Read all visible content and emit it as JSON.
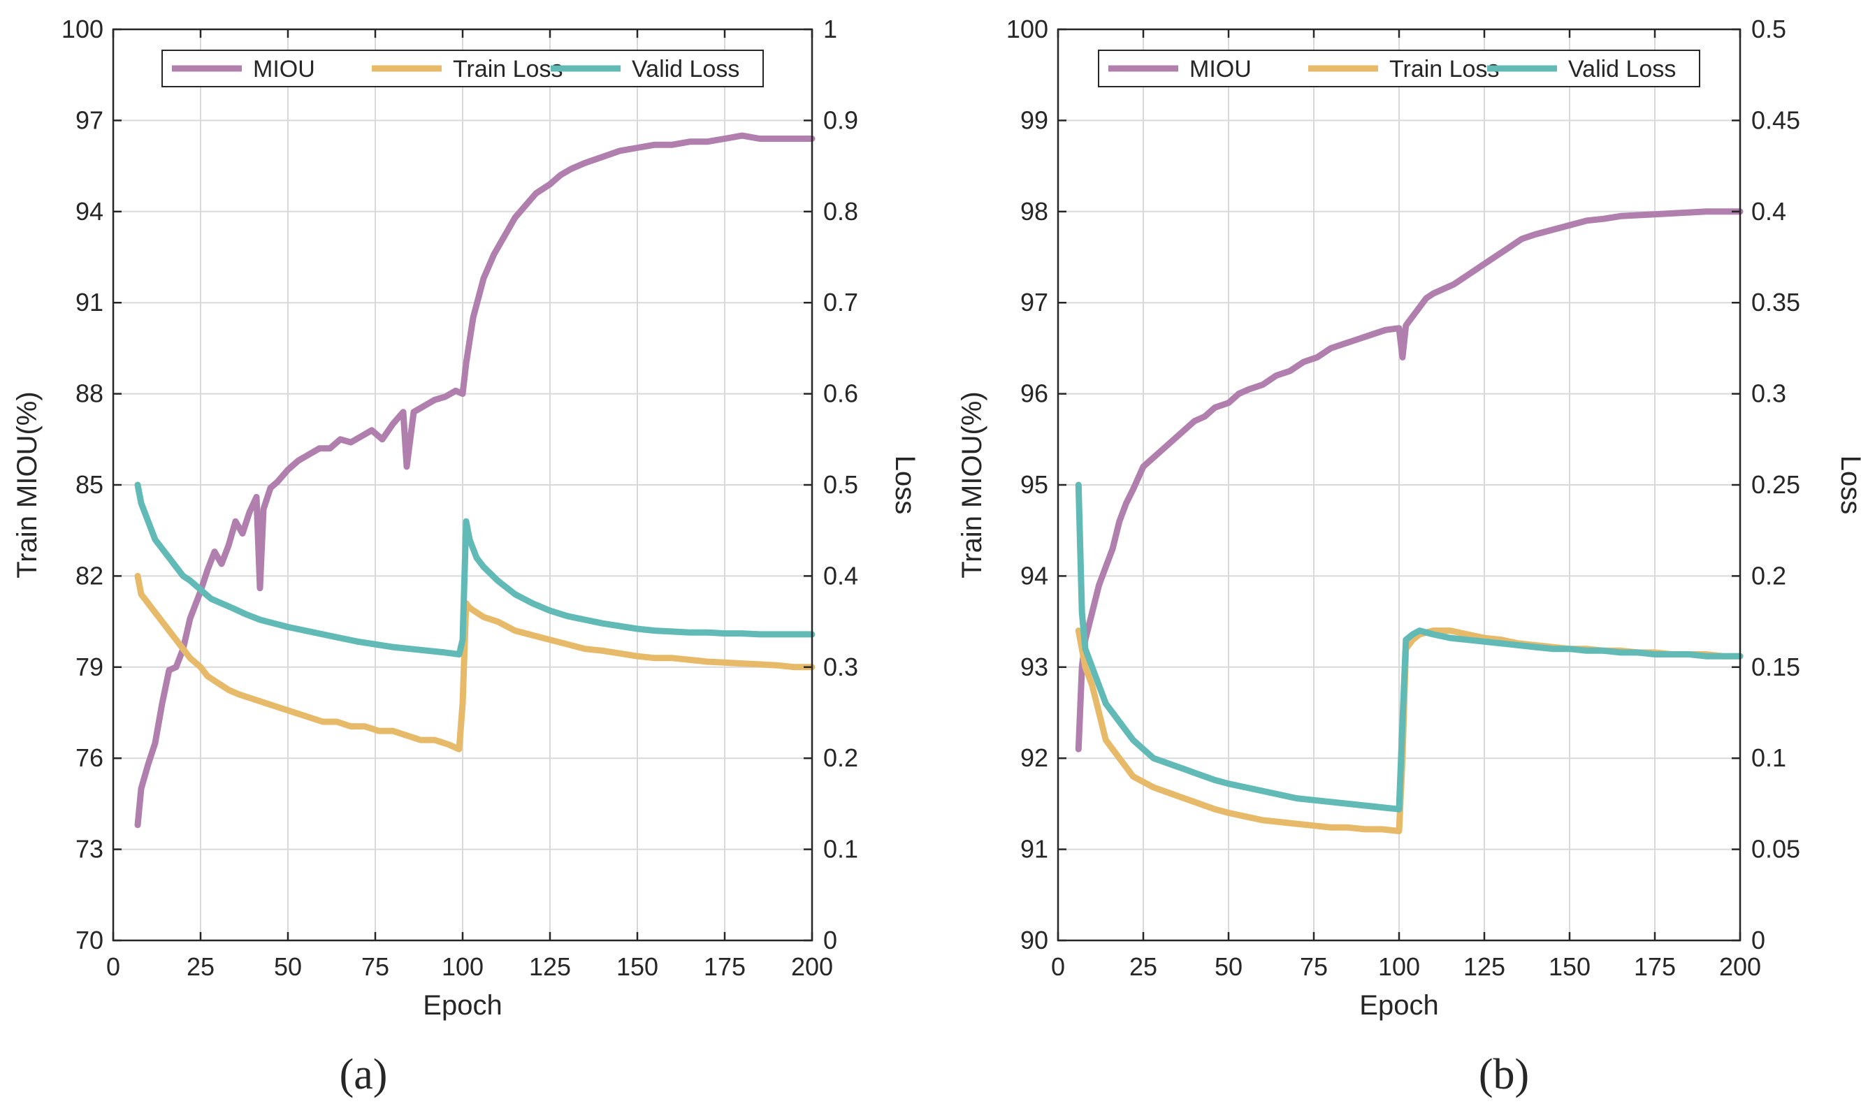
{
  "figure": {
    "colors": {
      "miou": "#b07fae",
      "train": "#e7ba6a",
      "valid": "#62bab7",
      "axis": "#262626",
      "grid": "#d9d9d9"
    }
  },
  "chart_data": [
    {
      "type": "line",
      "panel_label": "(a)",
      "xlabel": "Epoch",
      "ylabel_left": "Train MIOU(%)",
      "ylabel_right": "Loss",
      "xlim": [
        0,
        200
      ],
      "ylim_left": [
        70,
        100
      ],
      "ylim_right": [
        0,
        1
      ],
      "xticks": [
        "0",
        "25",
        "50",
        "75",
        "100",
        "125",
        "150",
        "175",
        "200"
      ],
      "yticks_left": [
        "70",
        "73",
        "76",
        "79",
        "82",
        "85",
        "88",
        "91",
        "94",
        "97",
        "100"
      ],
      "yticks_right": [
        "0",
        "0.1",
        "0.2",
        "0.3",
        "0.4",
        "0.5",
        "0.6",
        "0.7",
        "0.8",
        "0.9",
        "1"
      ],
      "grid": true,
      "legend": {
        "placement": "top",
        "entries": [
          "MIOU",
          "Train Loss",
          "Valid Loss"
        ]
      },
      "series": [
        {
          "name": "MIOU",
          "axis": "left",
          "color": "#b07fae",
          "x": [
            7,
            8,
            10,
            12,
            14,
            16,
            18,
            20,
            22,
            25,
            27,
            29,
            31,
            33,
            35,
            37,
            39,
            41,
            42,
            43,
            45,
            47,
            50,
            53,
            56,
            59,
            62,
            65,
            68,
            71,
            74,
            77,
            80,
            83,
            84,
            86,
            89,
            92,
            95,
            98,
            100,
            101,
            103,
            106,
            109,
            112,
            115,
            118,
            121,
            125,
            128,
            131,
            135,
            140,
            145,
            150,
            155,
            160,
            165,
            170,
            175,
            180,
            185,
            190,
            195,
            200
          ],
          "y": [
            73.8,
            75.0,
            75.8,
            76.5,
            77.8,
            78.9,
            79.0,
            79.6,
            80.6,
            81.5,
            82.2,
            82.8,
            82.4,
            83.0,
            83.8,
            83.4,
            84.1,
            84.6,
            81.6,
            84.2,
            84.9,
            85.1,
            85.5,
            85.8,
            86.0,
            86.2,
            86.2,
            86.5,
            86.4,
            86.6,
            86.8,
            86.5,
            87.0,
            87.4,
            85.6,
            87.4,
            87.6,
            87.8,
            87.9,
            88.1,
            88.0,
            89.0,
            90.5,
            91.8,
            92.6,
            93.2,
            93.8,
            94.2,
            94.6,
            94.9,
            95.2,
            95.4,
            95.6,
            95.8,
            96.0,
            96.1,
            96.2,
            96.2,
            96.3,
            96.3,
            96.4,
            96.5,
            96.4,
            96.4,
            96.4,
            96.4
          ]
        },
        {
          "name": "Train Loss",
          "axis": "right",
          "color": "#e7ba6a",
          "x": [
            7,
            8,
            10,
            12,
            14,
            16,
            18,
            20,
            22,
            25,
            27,
            29,
            31,
            33,
            36,
            40,
            44,
            48,
            52,
            56,
            60,
            64,
            68,
            72,
            76,
            80,
            84,
            88,
            92,
            96,
            99,
            100,
            101,
            102,
            104,
            106,
            110,
            115,
            120,
            125,
            130,
            135,
            140,
            145,
            150,
            155,
            160,
            165,
            170,
            175,
            180,
            185,
            190,
            195,
            200
          ],
          "y": [
            0.4,
            0.38,
            0.37,
            0.36,
            0.35,
            0.34,
            0.33,
            0.32,
            0.31,
            0.3,
            0.29,
            0.285,
            0.28,
            0.275,
            0.27,
            0.265,
            0.26,
            0.255,
            0.25,
            0.245,
            0.24,
            0.24,
            0.235,
            0.235,
            0.23,
            0.23,
            0.225,
            0.22,
            0.22,
            0.215,
            0.21,
            0.26,
            0.37,
            0.365,
            0.36,
            0.355,
            0.35,
            0.34,
            0.335,
            0.33,
            0.325,
            0.32,
            0.318,
            0.315,
            0.312,
            0.31,
            0.31,
            0.308,
            0.306,
            0.305,
            0.304,
            0.303,
            0.302,
            0.3,
            0.3
          ]
        },
        {
          "name": "Valid Loss",
          "axis": "right",
          "color": "#62bab7",
          "x": [
            7,
            8,
            10,
            12,
            14,
            16,
            18,
            20,
            22,
            25,
            28,
            31,
            34,
            38,
            42,
            46,
            50,
            55,
            60,
            65,
            70,
            75,
            80,
            85,
            90,
            95,
            99,
            100,
            101,
            102,
            104,
            106,
            110,
            115,
            120,
            125,
            130,
            135,
            140,
            145,
            150,
            155,
            160,
            165,
            170,
            175,
            180,
            185,
            190,
            195,
            200
          ],
          "y": [
            0.5,
            0.48,
            0.46,
            0.44,
            0.43,
            0.42,
            0.41,
            0.4,
            0.395,
            0.385,
            0.375,
            0.37,
            0.365,
            0.358,
            0.352,
            0.348,
            0.344,
            0.34,
            0.336,
            0.332,
            0.328,
            0.325,
            0.322,
            0.32,
            0.318,
            0.316,
            0.314,
            0.33,
            0.46,
            0.44,
            0.42,
            0.41,
            0.395,
            0.38,
            0.37,
            0.362,
            0.356,
            0.352,
            0.348,
            0.345,
            0.342,
            0.34,
            0.339,
            0.338,
            0.338,
            0.337,
            0.337,
            0.336,
            0.336,
            0.336,
            0.336
          ]
        }
      ]
    },
    {
      "type": "line",
      "panel_label": "(b)",
      "xlabel": "Epoch",
      "ylabel_left": "Train MIOU(%)",
      "ylabel_right": "Loss",
      "xlim": [
        0,
        200
      ],
      "ylim_left": [
        90,
        100
      ],
      "ylim_right": [
        0,
        0.5
      ],
      "xticks": [
        "0",
        "25",
        "50",
        "75",
        "100",
        "125",
        "150",
        "175",
        "200"
      ],
      "yticks_left": [
        "90",
        "91",
        "92",
        "93",
        "94",
        "95",
        "96",
        "97",
        "98",
        "99",
        "100"
      ],
      "yticks_right": [
        "0",
        "0.05",
        "0.1",
        "0.15",
        "0.2",
        "0.25",
        "0.3",
        "0.35",
        "0.4",
        "0.45",
        "0.5"
      ],
      "grid": true,
      "legend": {
        "placement": "top",
        "entries": [
          "MIOU",
          "Train Loss",
          "Valid Loss"
        ]
      },
      "series": [
        {
          "name": "MIOU",
          "axis": "left",
          "color": "#b07fae",
          "x": [
            6,
            7,
            8,
            10,
            12,
            14,
            16,
            18,
            20,
            22,
            25,
            28,
            31,
            34,
            37,
            40,
            43,
            46,
            50,
            53,
            56,
            60,
            64,
            68,
            72,
            76,
            80,
            84,
            88,
            92,
            96,
            100,
            101,
            102,
            104,
            106,
            108,
            110,
            113,
            116,
            120,
            124,
            128,
            132,
            136,
            140,
            145,
            150,
            155,
            160,
            165,
            170,
            175,
            180,
            185,
            190,
            195,
            200
          ],
          "y": [
            92.1,
            93.0,
            93.3,
            93.6,
            93.9,
            94.1,
            94.3,
            94.6,
            94.8,
            94.95,
            95.2,
            95.3,
            95.4,
            95.5,
            95.6,
            95.7,
            95.75,
            95.85,
            95.9,
            96.0,
            96.05,
            96.1,
            96.2,
            96.25,
            96.35,
            96.4,
            96.5,
            96.55,
            96.6,
            96.65,
            96.7,
            96.72,
            96.4,
            96.75,
            96.85,
            96.95,
            97.05,
            97.1,
            97.15,
            97.2,
            97.3,
            97.4,
            97.5,
            97.6,
            97.7,
            97.75,
            97.8,
            97.85,
            97.9,
            97.92,
            97.95,
            97.96,
            97.97,
            97.98,
            97.99,
            98.0,
            98.0,
            98.0
          ]
        },
        {
          "name": "Train Loss",
          "axis": "right",
          "color": "#e7ba6a",
          "x": [
            6,
            7,
            8,
            10,
            12,
            14,
            16,
            18,
            20,
            22,
            25,
            28,
            31,
            34,
            37,
            40,
            43,
            46,
            50,
            55,
            60,
            65,
            70,
            75,
            80,
            85,
            90,
            95,
            100,
            101,
            102,
            104,
            106,
            110,
            115,
            120,
            125,
            130,
            135,
            140,
            145,
            150,
            155,
            160,
            165,
            170,
            175,
            180,
            185,
            190,
            195,
            200
          ],
          "y": [
            0.17,
            0.16,
            0.15,
            0.14,
            0.125,
            0.11,
            0.105,
            0.1,
            0.095,
            0.09,
            0.087,
            0.084,
            0.082,
            0.08,
            0.078,
            0.076,
            0.074,
            0.072,
            0.07,
            0.068,
            0.066,
            0.065,
            0.064,
            0.063,
            0.062,
            0.062,
            0.061,
            0.061,
            0.06,
            0.1,
            0.16,
            0.165,
            0.168,
            0.17,
            0.17,
            0.168,
            0.166,
            0.165,
            0.163,
            0.162,
            0.161,
            0.16,
            0.16,
            0.159,
            0.159,
            0.158,
            0.158,
            0.157,
            0.157,
            0.157,
            0.156,
            0.156
          ]
        },
        {
          "name": "Valid Loss",
          "axis": "right",
          "color": "#62bab7",
          "x": [
            6,
            7,
            8,
            10,
            12,
            14,
            16,
            18,
            20,
            22,
            25,
            28,
            31,
            34,
            37,
            40,
            43,
            46,
            50,
            55,
            60,
            65,
            70,
            75,
            80,
            85,
            90,
            95,
            100,
            101,
            102,
            104,
            106,
            110,
            115,
            120,
            125,
            130,
            135,
            140,
            145,
            150,
            155,
            160,
            165,
            170,
            175,
            180,
            185,
            190,
            195,
            200
          ],
          "y": [
            0.25,
            0.18,
            0.16,
            0.15,
            0.14,
            0.13,
            0.125,
            0.12,
            0.115,
            0.11,
            0.105,
            0.1,
            0.098,
            0.096,
            0.094,
            0.092,
            0.09,
            0.088,
            0.086,
            0.084,
            0.082,
            0.08,
            0.078,
            0.077,
            0.076,
            0.075,
            0.074,
            0.073,
            0.072,
            0.12,
            0.165,
            0.168,
            0.17,
            0.168,
            0.166,
            0.165,
            0.164,
            0.163,
            0.162,
            0.161,
            0.16,
            0.16,
            0.159,
            0.159,
            0.158,
            0.158,
            0.157,
            0.157,
            0.157,
            0.156,
            0.156,
            0.156
          ]
        }
      ]
    }
  ]
}
